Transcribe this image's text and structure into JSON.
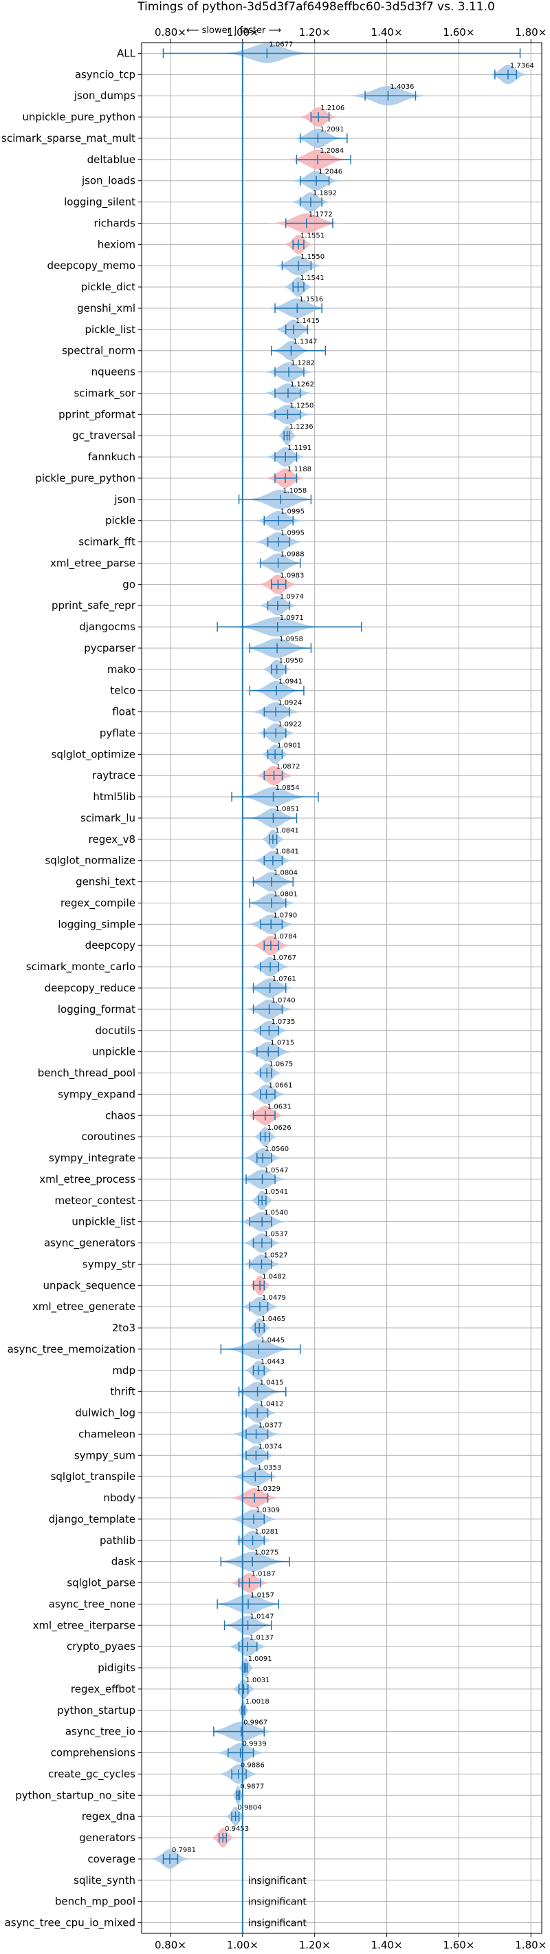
{
  "chart_data": {
    "type": "violin",
    "title": "Timings of python-3d5d3f7af6498effbc60-3d5d3f7 vs. 3.11.0",
    "direction_label": "⟵ slower | faster ⟶",
    "xlim": [
      0.72,
      1.83
    ],
    "x_ticks": [
      "0.80×",
      "1.00×",
      "1.20×",
      "1.40×",
      "1.60×",
      "1.80×"
    ],
    "x_tick_values": [
      0.8,
      1.0,
      1.2,
      1.4,
      1.6,
      1.8
    ],
    "reference_line": 1.0,
    "grid": true,
    "colors": {
      "faster": "#a6c8e8",
      "slower": "#f4b0b5",
      "error_bar": "#1f77b4",
      "reference": "#1f77b4"
    },
    "insignificant_label": "insignificant",
    "benchmarks": [
      {
        "name": "ALL",
        "value": 1.0677,
        "label": "1.0677",
        "lo": 0.78,
        "hi": 1.77,
        "spread": 0.045,
        "color": "faster"
      },
      {
        "name": "asyncio_tcp",
        "value": 1.7364,
        "label": "1.7364",
        "lo": 1.7,
        "hi": 1.76,
        "spread": 0.02,
        "color": "faster"
      },
      {
        "name": "json_dumps",
        "value": 1.4036,
        "label": "1.4036",
        "lo": 1.34,
        "hi": 1.48,
        "spread": 0.04,
        "color": "faster"
      },
      {
        "name": "unpickle_pure_python",
        "value": 1.2106,
        "label": "1.2106",
        "lo": 1.19,
        "hi": 1.24,
        "spread": 0.02,
        "color": "slower"
      },
      {
        "name": "scimark_sparse_mat_mult",
        "value": 1.2091,
        "label": "1.2091",
        "lo": 1.16,
        "hi": 1.29,
        "spread": 0.025,
        "color": "faster"
      },
      {
        "name": "deltablue",
        "value": 1.2084,
        "label": "1.2084",
        "lo": 1.15,
        "hi": 1.3,
        "spread": 0.03,
        "color": "slower"
      },
      {
        "name": "json_loads",
        "value": 1.2046,
        "label": "1.2046",
        "lo": 1.16,
        "hi": 1.24,
        "spread": 0.025,
        "color": "faster"
      },
      {
        "name": "logging_silent",
        "value": 1.1892,
        "label": "1.1892",
        "lo": 1.16,
        "hi": 1.22,
        "spread": 0.02,
        "color": "faster"
      },
      {
        "name": "richards",
        "value": 1.1772,
        "label": "1.1772",
        "lo": 1.12,
        "hi": 1.25,
        "spread": 0.035,
        "color": "slower"
      },
      {
        "name": "hexiom",
        "value": 1.1551,
        "label": "1.1551",
        "lo": 1.14,
        "hi": 1.17,
        "spread": 0.015,
        "color": "slower"
      },
      {
        "name": "deepcopy_memo",
        "value": 1.155,
        "label": "1.1550",
        "lo": 1.11,
        "hi": 1.19,
        "spread": 0.025,
        "color": "faster"
      },
      {
        "name": "pickle_dict",
        "value": 1.1541,
        "label": "1.1541",
        "lo": 1.14,
        "hi": 1.17,
        "spread": 0.015,
        "color": "faster"
      },
      {
        "name": "genshi_xml",
        "value": 1.1516,
        "label": "1.1516",
        "lo": 1.09,
        "hi": 1.22,
        "spread": 0.03,
        "color": "faster"
      },
      {
        "name": "pickle_list",
        "value": 1.1415,
        "label": "1.1415",
        "lo": 1.12,
        "hi": 1.18,
        "spread": 0.02,
        "color": "faster"
      },
      {
        "name": "spectral_norm",
        "value": 1.1347,
        "label": "1.1347",
        "lo": 1.08,
        "hi": 1.23,
        "spread": 0.02,
        "color": "faster"
      },
      {
        "name": "nqueens",
        "value": 1.1282,
        "label": "1.1282",
        "lo": 1.09,
        "hi": 1.17,
        "spread": 0.025,
        "color": "faster"
      },
      {
        "name": "scimark_sor",
        "value": 1.1262,
        "label": "1.1262",
        "lo": 1.09,
        "hi": 1.16,
        "spread": 0.025,
        "color": "faster"
      },
      {
        "name": "pprint_pformat",
        "value": 1.125,
        "label": "1.1250",
        "lo": 1.09,
        "hi": 1.16,
        "spread": 0.025,
        "color": "faster"
      },
      {
        "name": "gc_traversal",
        "value": 1.1236,
        "label": "1.1236",
        "lo": 1.115,
        "hi": 1.13,
        "spread": 0.01,
        "color": "faster"
      },
      {
        "name": "fannkuch",
        "value": 1.1191,
        "label": "1.1191",
        "lo": 1.09,
        "hi": 1.15,
        "spread": 0.02,
        "color": "faster"
      },
      {
        "name": "pickle_pure_python",
        "value": 1.1188,
        "label": "1.1188",
        "lo": 1.09,
        "hi": 1.15,
        "spread": 0.02,
        "color": "slower"
      },
      {
        "name": "json",
        "value": 1.1058,
        "label": "1.1058",
        "lo": 0.99,
        "hi": 1.19,
        "spread": 0.035,
        "color": "faster"
      },
      {
        "name": "pickle",
        "value": 1.0995,
        "label": "1.0995",
        "lo": 1.06,
        "hi": 1.14,
        "spread": 0.025,
        "color": "faster"
      },
      {
        "name": "scimark_fft",
        "value": 1.0995,
        "label": "1.0995",
        "lo": 1.07,
        "hi": 1.13,
        "spread": 0.025,
        "color": "faster"
      },
      {
        "name": "xml_etree_parse",
        "value": 1.0988,
        "label": "1.0988",
        "lo": 1.05,
        "hi": 1.16,
        "spread": 0.025,
        "color": "faster"
      },
      {
        "name": "go",
        "value": 1.0983,
        "label": "1.0983",
        "lo": 1.08,
        "hi": 1.12,
        "spread": 0.02,
        "color": "slower"
      },
      {
        "name": "pprint_safe_repr",
        "value": 1.0974,
        "label": "1.0974",
        "lo": 1.07,
        "hi": 1.13,
        "spread": 0.02,
        "color": "faster"
      },
      {
        "name": "djangocms",
        "value": 1.0971,
        "label": "1.0971",
        "lo": 0.93,
        "hi": 1.33,
        "spread": 0.045,
        "color": "faster"
      },
      {
        "name": "pycparser",
        "value": 1.0958,
        "label": "1.0958",
        "lo": 1.02,
        "hi": 1.19,
        "spread": 0.035,
        "color": "faster"
      },
      {
        "name": "mako",
        "value": 1.095,
        "label": "1.0950",
        "lo": 1.08,
        "hi": 1.12,
        "spread": 0.015,
        "color": "faster"
      },
      {
        "name": "telco",
        "value": 1.0941,
        "label": "1.0941",
        "lo": 1.02,
        "hi": 1.17,
        "spread": 0.025,
        "color": "faster"
      },
      {
        "name": "float",
        "value": 1.0924,
        "label": "1.0924",
        "lo": 1.06,
        "hi": 1.13,
        "spread": 0.025,
        "color": "faster"
      },
      {
        "name": "pyflate",
        "value": 1.0922,
        "label": "1.0922",
        "lo": 1.06,
        "hi": 1.12,
        "spread": 0.02,
        "color": "faster"
      },
      {
        "name": "sqlglot_optimize",
        "value": 1.0901,
        "label": "1.0901",
        "lo": 1.07,
        "hi": 1.11,
        "spread": 0.015,
        "color": "faster"
      },
      {
        "name": "raytrace",
        "value": 1.0872,
        "label": "1.0872",
        "lo": 1.06,
        "hi": 1.11,
        "spread": 0.02,
        "color": "slower"
      },
      {
        "name": "html5lib",
        "value": 1.0854,
        "label": "1.0854",
        "lo": 0.97,
        "hi": 1.21,
        "spread": 0.035,
        "color": "faster"
      },
      {
        "name": "scimark_lu",
        "value": 1.0851,
        "label": "1.0851",
        "lo": 1.0,
        "hi": 1.15,
        "spread": 0.025,
        "color": "faster"
      },
      {
        "name": "regex_v8",
        "value": 1.0841,
        "label": "1.0841",
        "lo": 1.075,
        "hi": 1.095,
        "spread": 0.012,
        "color": "faster"
      },
      {
        "name": "sqlglot_normalize",
        "value": 1.0841,
        "label": "1.0841",
        "lo": 1.06,
        "hi": 1.11,
        "spread": 0.02,
        "color": "faster"
      },
      {
        "name": "genshi_text",
        "value": 1.0804,
        "label": "1.0804",
        "lo": 1.03,
        "hi": 1.14,
        "spread": 0.025,
        "color": "faster"
      },
      {
        "name": "regex_compile",
        "value": 1.0801,
        "label": "1.0801",
        "lo": 1.02,
        "hi": 1.12,
        "spread": 0.025,
        "color": "faster"
      },
      {
        "name": "logging_simple",
        "value": 1.079,
        "label": "1.0790",
        "lo": 1.05,
        "hi": 1.11,
        "spread": 0.025,
        "color": "faster"
      },
      {
        "name": "deepcopy",
        "value": 1.0784,
        "label": "1.0784",
        "lo": 1.06,
        "hi": 1.1,
        "spread": 0.02,
        "color": "slower"
      },
      {
        "name": "scimark_monte_carlo",
        "value": 1.0767,
        "label": "1.0767",
        "lo": 1.05,
        "hi": 1.1,
        "spread": 0.02,
        "color": "faster"
      },
      {
        "name": "deepcopy_reduce",
        "value": 1.0761,
        "label": "1.0761",
        "lo": 1.03,
        "hi": 1.12,
        "spread": 0.025,
        "color": "faster"
      },
      {
        "name": "logging_format",
        "value": 1.074,
        "label": "1.0740",
        "lo": 1.03,
        "hi": 1.11,
        "spread": 0.025,
        "color": "faster"
      },
      {
        "name": "docutils",
        "value": 1.0735,
        "label": "1.0735",
        "lo": 1.05,
        "hi": 1.1,
        "spread": 0.02,
        "color": "faster"
      },
      {
        "name": "unpickle",
        "value": 1.0715,
        "label": "1.0715",
        "lo": 1.04,
        "hi": 1.1,
        "spread": 0.025,
        "color": "faster"
      },
      {
        "name": "bench_thread_pool",
        "value": 1.0675,
        "label": "1.0675",
        "lo": 1.05,
        "hi": 1.08,
        "spread": 0.015,
        "color": "faster"
      },
      {
        "name": "sympy_expand",
        "value": 1.0661,
        "label": "1.0661",
        "lo": 1.05,
        "hi": 1.09,
        "spread": 0.02,
        "color": "faster"
      },
      {
        "name": "chaos",
        "value": 1.0631,
        "label": "1.0631",
        "lo": 1.03,
        "hi": 1.09,
        "spread": 0.02,
        "color": "slower"
      },
      {
        "name": "coroutines",
        "value": 1.0626,
        "label": "1.0626",
        "lo": 1.05,
        "hi": 1.075,
        "spread": 0.012,
        "color": "faster"
      },
      {
        "name": "sympy_integrate",
        "value": 1.056,
        "label": "1.0560",
        "lo": 1.04,
        "hi": 1.08,
        "spread": 0.02,
        "color": "faster"
      },
      {
        "name": "xml_etree_process",
        "value": 1.0547,
        "label": "1.0547",
        "lo": 1.01,
        "hi": 1.09,
        "spread": 0.025,
        "color": "faster"
      },
      {
        "name": "meteor_contest",
        "value": 1.0541,
        "label": "1.0541",
        "lo": 1.045,
        "hi": 1.065,
        "spread": 0.012,
        "color": "faster"
      },
      {
        "name": "unpickle_list",
        "value": 1.054,
        "label": "1.0540",
        "lo": 1.02,
        "hi": 1.08,
        "spread": 0.025,
        "color": "faster"
      },
      {
        "name": "async_generators",
        "value": 1.0537,
        "label": "1.0537",
        "lo": 1.03,
        "hi": 1.08,
        "spread": 0.02,
        "color": "faster"
      },
      {
        "name": "sympy_str",
        "value": 1.0527,
        "label": "1.0527",
        "lo": 1.02,
        "hi": 1.08,
        "spread": 0.02,
        "color": "faster"
      },
      {
        "name": "unpack_sequence",
        "value": 1.0482,
        "label": "1.0482",
        "lo": 1.03,
        "hi": 1.06,
        "spread": 0.012,
        "color": "slower"
      },
      {
        "name": "xml_etree_generate",
        "value": 1.0479,
        "label": "1.0479",
        "lo": 1.02,
        "hi": 1.07,
        "spread": 0.02,
        "color": "faster"
      },
      {
        "name": "2to3",
        "value": 1.0465,
        "label": "1.0465",
        "lo": 1.035,
        "hi": 1.06,
        "spread": 0.012,
        "color": "faster"
      },
      {
        "name": "async_tree_memoization",
        "value": 1.0445,
        "label": "1.0445",
        "lo": 0.94,
        "hi": 1.16,
        "spread": 0.035,
        "color": "faster"
      },
      {
        "name": "mdp",
        "value": 1.0443,
        "label": "1.0443",
        "lo": 1.03,
        "hi": 1.06,
        "spread": 0.015,
        "color": "faster"
      },
      {
        "name": "thrift",
        "value": 1.0415,
        "label": "1.0415",
        "lo": 0.99,
        "hi": 1.12,
        "spread": 0.025,
        "color": "faster"
      },
      {
        "name": "dulwich_log",
        "value": 1.0412,
        "label": "1.0412",
        "lo": 1.01,
        "hi": 1.07,
        "spread": 0.02,
        "color": "faster"
      },
      {
        "name": "chameleon",
        "value": 1.0377,
        "label": "1.0377",
        "lo": 1.01,
        "hi": 1.07,
        "spread": 0.025,
        "color": "faster"
      },
      {
        "name": "sympy_sum",
        "value": 1.0374,
        "label": "1.0374",
        "lo": 1.01,
        "hi": 1.07,
        "spread": 0.02,
        "color": "faster"
      },
      {
        "name": "sqlglot_transpile",
        "value": 1.0353,
        "label": "1.0353",
        "lo": 1.0,
        "hi": 1.08,
        "spread": 0.025,
        "color": "faster"
      },
      {
        "name": "nbody",
        "value": 1.0329,
        "label": "1.0329",
        "lo": 1.0,
        "hi": 1.07,
        "spread": 0.025,
        "color": "slower"
      },
      {
        "name": "django_template",
        "value": 1.0309,
        "label": "1.0309",
        "lo": 1.0,
        "hi": 1.06,
        "spread": 0.025,
        "color": "faster"
      },
      {
        "name": "pathlib",
        "value": 1.0281,
        "label": "1.0281",
        "lo": 0.99,
        "hi": 1.06,
        "spread": 0.02,
        "color": "faster"
      },
      {
        "name": "dask",
        "value": 1.0275,
        "label": "1.0275",
        "lo": 0.94,
        "hi": 1.13,
        "spread": 0.035,
        "color": "faster"
      },
      {
        "name": "sqlglot_parse",
        "value": 1.0187,
        "label": "1.0187",
        "lo": 0.99,
        "hi": 1.05,
        "spread": 0.02,
        "color": "slower"
      },
      {
        "name": "async_tree_none",
        "value": 1.0157,
        "label": "1.0157",
        "lo": 0.93,
        "hi": 1.1,
        "spread": 0.035,
        "color": "faster"
      },
      {
        "name": "xml_etree_iterparse",
        "value": 1.0147,
        "label": "1.0147",
        "lo": 0.95,
        "hi": 1.08,
        "spread": 0.025,
        "color": "faster"
      },
      {
        "name": "crypto_pyaes",
        "value": 1.0137,
        "label": "1.0137",
        "lo": 0.99,
        "hi": 1.04,
        "spread": 0.02,
        "color": "faster"
      },
      {
        "name": "pidigits",
        "value": 1.0091,
        "label": "1.0091",
        "lo": 1.005,
        "hi": 1.013,
        "spread": 0.008,
        "color": "faster"
      },
      {
        "name": "regex_effbot",
        "value": 1.0031,
        "label": "1.0031",
        "lo": 0.99,
        "hi": 1.015,
        "spread": 0.012,
        "color": "faster"
      },
      {
        "name": "python_startup",
        "value": 1.0018,
        "label": "1.0018",
        "lo": 0.998,
        "hi": 1.006,
        "spread": 0.006,
        "color": "faster"
      },
      {
        "name": "async_tree_io",
        "value": 0.9967,
        "label": "0.9967",
        "lo": 0.92,
        "hi": 1.06,
        "spread": 0.035,
        "color": "faster"
      },
      {
        "name": "comprehensions",
        "value": 0.9939,
        "label": "0.9939",
        "lo": 0.96,
        "hi": 1.03,
        "spread": 0.025,
        "color": "faster"
      },
      {
        "name": "create_gc_cycles",
        "value": 0.9886,
        "label": "0.9886",
        "lo": 0.97,
        "hi": 1.01,
        "spread": 0.02,
        "color": "faster"
      },
      {
        "name": "python_startup_no_site",
        "value": 0.9877,
        "label": "0.9877",
        "lo": 0.983,
        "hi": 0.992,
        "spread": 0.006,
        "color": "faster"
      },
      {
        "name": "regex_dna",
        "value": 0.9804,
        "label": "0.9804",
        "lo": 0.97,
        "hi": 0.99,
        "spread": 0.01,
        "color": "faster"
      },
      {
        "name": "generators",
        "value": 0.9453,
        "label": "0.9453",
        "lo": 0.935,
        "hi": 0.955,
        "spread": 0.012,
        "color": "slower"
      },
      {
        "name": "coverage",
        "value": 0.7981,
        "label": "0.7981",
        "lo": 0.78,
        "hi": 0.82,
        "spread": 0.02,
        "color": "faster"
      },
      {
        "name": "sqlite_synth",
        "value": null,
        "label": "",
        "insignificant": true
      },
      {
        "name": "bench_mp_pool",
        "value": null,
        "label": "",
        "insignificant": true
      },
      {
        "name": "async_tree_cpu_io_mixed",
        "value": null,
        "label": "",
        "insignificant": true
      }
    ]
  }
}
